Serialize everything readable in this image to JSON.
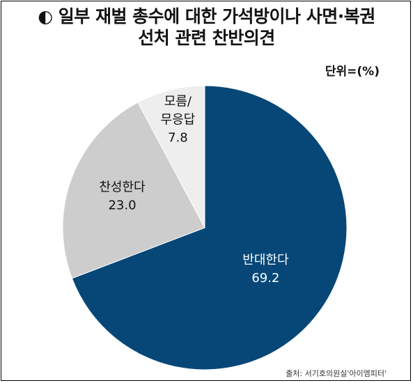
{
  "title": {
    "line1": "◐ 일부 재벌 총수에 대한 가석방이나 사면·복권",
    "line2": "선처 관련 찬반의견"
  },
  "unit_label": "단위=(%)",
  "source": "출처: 서기호의원실'아이엠피터'",
  "chart_data": {
    "type": "pie",
    "title": "◐ 일부 재벌 총수에 대한 가석방이나 사면·복권 선처 관련 찬반의견",
    "unit": "단위=(%)",
    "slices": [
      {
        "label": "반대한다",
        "value": 69.2,
        "value_text": "69.2",
        "color": "#064778",
        "text_color": "#ffffff"
      },
      {
        "label": "찬성한다",
        "value": 23.0,
        "value_text": "23.0",
        "color": "#cdcdcd",
        "text_color": "#111111"
      },
      {
        "label": "모름/\n무응답",
        "value": 7.8,
        "value_text": "7.8",
        "color": "#eeeeee",
        "text_color": "#111111"
      }
    ],
    "start_angle_deg": 0,
    "direction": "clockwise"
  }
}
